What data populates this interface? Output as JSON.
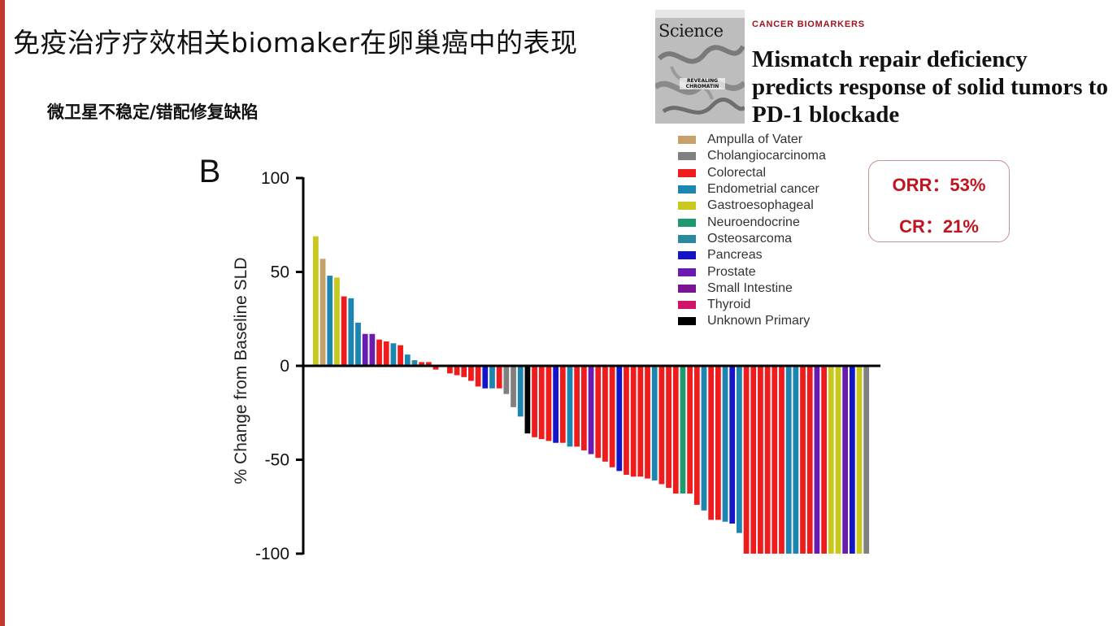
{
  "slide": {
    "title": "免疫治疗疗效相关biomaker在卵巢癌中的表现",
    "subtitle": "微卫星不稳定/错配修复缺陷",
    "accent_color": "#c0392b"
  },
  "paper": {
    "journal_masthead": "Science",
    "cover_caption": "REVEALING CHROMATIN",
    "kicker": "CANCER BIOMARKERS",
    "title": "Mismatch repair deficiency predicts response of solid tumors to PD-1 blockade",
    "kicker_color": "#a0141e"
  },
  "stats": {
    "orr": "ORR：53%",
    "cr": "CR：21%",
    "color": "#c0141e"
  },
  "chart_data": {
    "type": "bar",
    "panel_label": "B",
    "ylabel": "% Change from Baseline SLD",
    "ylim": [
      -100,
      100
    ],
    "yticks": [
      "100",
      "50",
      "0",
      "-50",
      "-100"
    ],
    "yticks_values": [
      100,
      50,
      0,
      -50,
      -100
    ],
    "legend_placement": "top-right",
    "series": [
      {
        "name": "Ampulla of Vater",
        "color": "#c8a06a"
      },
      {
        "name": "Cholangiocarcinoma",
        "color": "#808080"
      },
      {
        "name": "Colorectal",
        "color": "#ee1c1c"
      },
      {
        "name": "Endometrial cancer",
        "color": "#1c86b0"
      },
      {
        "name": "Gastroesophageal",
        "color": "#c8c81e"
      },
      {
        "name": "Neuroendocrine",
        "color": "#1e9a70"
      },
      {
        "name": "Osteosarcoma",
        "color": "#2a8aa0"
      },
      {
        "name": "Pancreas",
        "color": "#1414c8"
      },
      {
        "name": "Prostate",
        "color": "#6a1cb0"
      },
      {
        "name": "Small Intestine",
        "color": "#7a1490"
      },
      {
        "name": "Thyroid",
        "color": "#d0146a"
      },
      {
        "name": "Unknown Primary",
        "color": "#000000"
      }
    ],
    "bars": [
      {
        "value": 69,
        "series": "Gastroesophageal"
      },
      {
        "value": 57,
        "series": "Ampulla of Vater"
      },
      {
        "value": 48,
        "series": "Endometrial cancer"
      },
      {
        "value": 47,
        "series": "Gastroesophageal"
      },
      {
        "value": 37,
        "series": "Colorectal"
      },
      {
        "value": 36,
        "series": "Endometrial cancer"
      },
      {
        "value": 23,
        "series": "Endometrial cancer"
      },
      {
        "value": 17,
        "series": "Prostate"
      },
      {
        "value": 17,
        "series": "Prostate"
      },
      {
        "value": 14,
        "series": "Colorectal"
      },
      {
        "value": 13,
        "series": "Colorectal"
      },
      {
        "value": 12,
        "series": "Endometrial cancer"
      },
      {
        "value": 11,
        "series": "Colorectal"
      },
      {
        "value": 6,
        "series": "Endometrial cancer"
      },
      {
        "value": 3,
        "series": "Osteosarcoma"
      },
      {
        "value": 2,
        "series": "Colorectal"
      },
      {
        "value": 2,
        "series": "Colorectal"
      },
      {
        "value": -2,
        "series": "Colorectal"
      },
      {
        "value": 0,
        "series": "Colorectal"
      },
      {
        "value": -4,
        "series": "Colorectal"
      },
      {
        "value": -5,
        "series": "Colorectal"
      },
      {
        "value": -6,
        "series": "Colorectal"
      },
      {
        "value": -8,
        "series": "Colorectal"
      },
      {
        "value": -11,
        "series": "Colorectal"
      },
      {
        "value": -12,
        "series": "Pancreas"
      },
      {
        "value": -12,
        "series": "Endometrial cancer"
      },
      {
        "value": -12,
        "series": "Colorectal"
      },
      {
        "value": -15,
        "series": "Cholangiocarcinoma"
      },
      {
        "value": -22,
        "series": "Cholangiocarcinoma"
      },
      {
        "value": -27,
        "series": "Endometrial cancer"
      },
      {
        "value": -36,
        "series": "Unknown Primary"
      },
      {
        "value": -38,
        "series": "Colorectal"
      },
      {
        "value": -39,
        "series": "Colorectal"
      },
      {
        "value": -40,
        "series": "Colorectal"
      },
      {
        "value": -41,
        "series": "Pancreas"
      },
      {
        "value": -41,
        "series": "Colorectal"
      },
      {
        "value": -43,
        "series": "Endometrial cancer"
      },
      {
        "value": -43,
        "series": "Colorectal"
      },
      {
        "value": -45,
        "series": "Colorectal"
      },
      {
        "value": -47,
        "series": "Prostate"
      },
      {
        "value": -49,
        "series": "Colorectal"
      },
      {
        "value": -51,
        "series": "Colorectal"
      },
      {
        "value": -54,
        "series": "Colorectal"
      },
      {
        "value": -56,
        "series": "Pancreas"
      },
      {
        "value": -58,
        "series": "Colorectal"
      },
      {
        "value": -59,
        "series": "Colorectal"
      },
      {
        "value": -59,
        "series": "Colorectal"
      },
      {
        "value": -60,
        "series": "Colorectal"
      },
      {
        "value": -61,
        "series": "Endometrial cancer"
      },
      {
        "value": -63,
        "series": "Colorectal"
      },
      {
        "value": -65,
        "series": "Colorectal"
      },
      {
        "value": -68,
        "series": "Colorectal"
      },
      {
        "value": -68,
        "series": "Neuroendocrine"
      },
      {
        "value": -68,
        "series": "Colorectal"
      },
      {
        "value": -74,
        "series": "Colorectal"
      },
      {
        "value": -77,
        "series": "Endometrial cancer"
      },
      {
        "value": -82,
        "series": "Colorectal"
      },
      {
        "value": -82,
        "series": "Colorectal"
      },
      {
        "value": -83,
        "series": "Endometrial cancer"
      },
      {
        "value": -84,
        "series": "Pancreas"
      },
      {
        "value": -89,
        "series": "Endometrial cancer"
      },
      {
        "value": -100,
        "series": "Colorectal"
      },
      {
        "value": -100,
        "series": "Colorectal"
      },
      {
        "value": -100,
        "series": "Colorectal"
      },
      {
        "value": -100,
        "series": "Colorectal"
      },
      {
        "value": -100,
        "series": "Colorectal"
      },
      {
        "value": -100,
        "series": "Colorectal"
      },
      {
        "value": -100,
        "series": "Endometrial cancer"
      },
      {
        "value": -100,
        "series": "Endometrial cancer"
      },
      {
        "value": -100,
        "series": "Colorectal"
      },
      {
        "value": -100,
        "series": "Colorectal"
      },
      {
        "value": -100,
        "series": "Prostate"
      },
      {
        "value": -100,
        "series": "Colorectal"
      },
      {
        "value": -100,
        "series": "Gastroesophageal"
      },
      {
        "value": -100,
        "series": "Gastroesophageal"
      },
      {
        "value": -100,
        "series": "Prostate"
      },
      {
        "value": -100,
        "series": "Pancreas"
      },
      {
        "value": -100,
        "series": "Gastroesophageal"
      },
      {
        "value": -100,
        "series": "Cholangiocarcinoma"
      }
    ]
  }
}
